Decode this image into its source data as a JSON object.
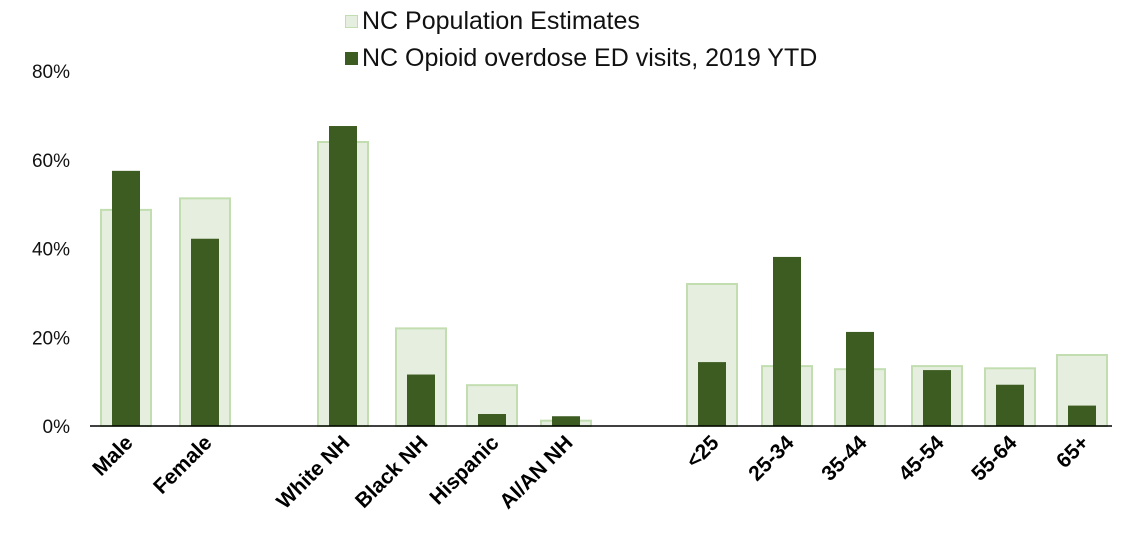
{
  "legend": {
    "population_label": "NC Population Estimates",
    "ed_label": "NC Opioid overdose ED visits, 2019 YTD"
  },
  "colors": {
    "population_fill": "#e6efdf",
    "population_stroke": "#c2deb1",
    "ed_fill": "#3d5c21",
    "axis": "#000000"
  },
  "chart_data": {
    "type": "bar",
    "title": "",
    "xlabel": "",
    "ylabel": "",
    "ylim": [
      0,
      80
    ],
    "y_ticks": [
      0,
      20,
      40,
      60,
      80
    ],
    "y_tick_labels": [
      "0%",
      "20%",
      "40%",
      "60%",
      "80%"
    ],
    "grid": false,
    "legend_position": "top-center",
    "groups": [
      [
        "Male",
        "Female"
      ],
      [
        "White NH",
        "Black NH",
        "Hispanic",
        "AI/AN NH"
      ],
      [
        "<25",
        "25-34",
        "35-44",
        "45-54",
        "55-64",
        "65+"
      ]
    ],
    "categories": [
      "Male",
      "Female",
      "White NH",
      "Black NH",
      "Hispanic",
      "AI/AN NH",
      "<25",
      "25-34",
      "35-44",
      "45-54",
      "55-64",
      "65+"
    ],
    "series": [
      {
        "name": "NC Population Estimates",
        "values": [
          48.7,
          51.3,
          64,
          22,
          9.2,
          1.2,
          32,
          13.5,
          12.8,
          13.5,
          13,
          16
        ]
      },
      {
        "name": "NC Opioid overdose ED visits, 2019 YTD",
        "values": [
          57.5,
          42.2,
          67.6,
          11.6,
          2.7,
          2.2,
          14.4,
          38.1,
          21.2,
          12.6,
          9.3,
          4.6
        ]
      }
    ]
  }
}
